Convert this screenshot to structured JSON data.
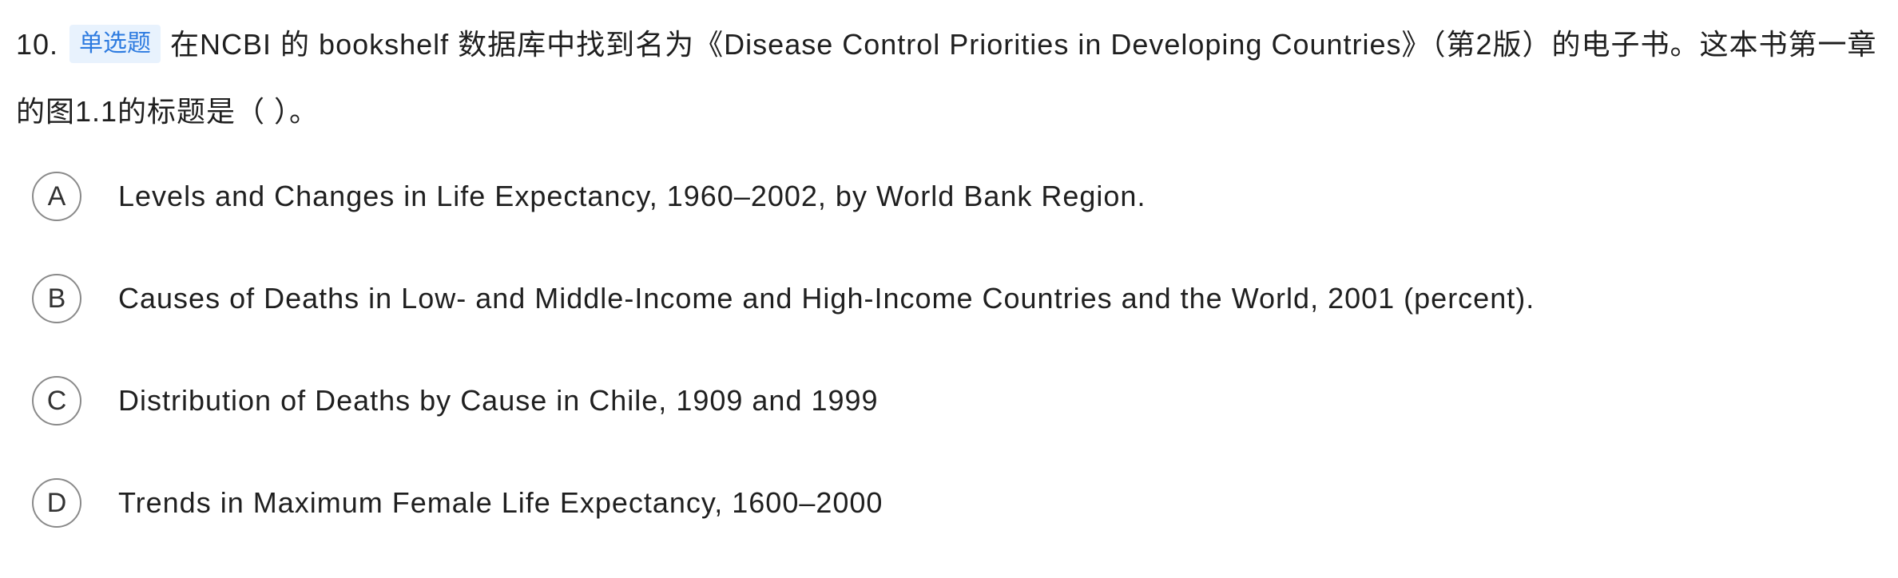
{
  "question": {
    "number": "10.",
    "type_badge": "单选题",
    "text": "在NCBI 的 bookshelf 数据库中找到名为《Disease Control Priorities in Developing Countries》（第2版）的电子书。这本书第一章的图1.1的标题是（ ）。"
  },
  "options": [
    {
      "letter": "A",
      "text": "Levels and Changes in Life Expectancy, 1960–2002, by World Bank Region."
    },
    {
      "letter": "B",
      "text": "Causes of Deaths in Low- and Middle-Income and High-Income Countries and the World, 2001 (percent)."
    },
    {
      "letter": "C",
      "text": "Distribution of Deaths by Cause in Chile, 1909 and 1999"
    },
    {
      "letter": "D",
      "text": "Trends in Maximum Female Life Expectancy, 1600–2000"
    }
  ],
  "colors": {
    "badge_bg": "#e8f2fd",
    "badge_text": "#2d7be0",
    "option_circle_border": "#8a8a8a"
  }
}
